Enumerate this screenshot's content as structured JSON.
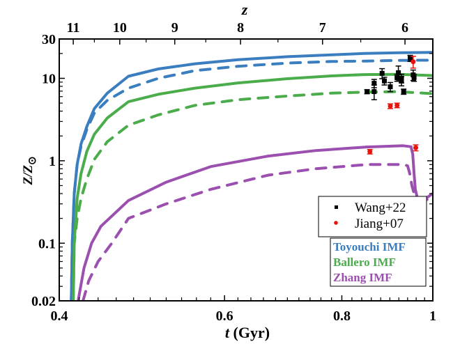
{
  "chart_data": {
    "type": "line",
    "title": "",
    "xlabel_italic": "t",
    "xlabel_rest": " (Gyr)",
    "ylabel_main": "Z/Z",
    "ylabel_sub": "⊙",
    "top_axis_label": "z",
    "xscale": "log",
    "yscale": "log",
    "xlim": [
      0.4,
      1.0
    ],
    "ylim": [
      0.02,
      30
    ],
    "x_ticks": [
      {
        "value": 0.4,
        "label": "0.4"
      },
      {
        "value": 0.6,
        "label": "0.6"
      },
      {
        "value": 0.8,
        "label": "0.8"
      },
      {
        "value": 1.0,
        "label": "1"
      }
    ],
    "y_ticks": [
      {
        "value": 0.02,
        "label": "0.02"
      },
      {
        "value": 0.1,
        "label": "0.1"
      },
      {
        "value": 1,
        "label": "1"
      },
      {
        "value": 10,
        "label": "10"
      },
      {
        "value": 30,
        "label": "30"
      }
    ],
    "top_ticks": [
      {
        "z": 11,
        "t": 0.414,
        "label": "11"
      },
      {
        "z": 10,
        "t": 0.464,
        "label": "10"
      },
      {
        "z": 9,
        "t": 0.531,
        "label": "9"
      },
      {
        "z": 8,
        "t": 0.624,
        "label": "8"
      },
      {
        "z": 7,
        "t": 0.763,
        "label": "7"
      },
      {
        "z": 6,
        "t": 0.934,
        "label": "6"
      }
    ],
    "top_minor_t": [
      0.436,
      0.495,
      0.573,
      0.684,
      0.838
    ],
    "grid": false,
    "legend_placement": "bottom-right",
    "series": [
      {
        "name": "Toyouchi IMF",
        "style": "solid",
        "color": "#3a7ebf",
        "points": [
          [
            0.412,
            0.02
          ],
          [
            0.413,
            0.1
          ],
          [
            0.415,
            0.4
          ],
          [
            0.418,
            0.9
          ],
          [
            0.422,
            1.6
          ],
          [
            0.428,
            2.6
          ],
          [
            0.436,
            4.3
          ],
          [
            0.45,
            6.6
          ],
          [
            0.474,
            10.6
          ],
          [
            0.51,
            13.0
          ],
          [
            0.558,
            15.0
          ],
          [
            0.62,
            16.8
          ],
          [
            0.7,
            18.3
          ],
          [
            0.78,
            19.3
          ],
          [
            0.845,
            20.0
          ],
          [
            0.92,
            20.4
          ],
          [
            1.0,
            20.6
          ]
        ]
      },
      {
        "name": "Toyouchi IMF (dashed)",
        "style": "dashed",
        "color": "#3a7ebf",
        "points": [
          [
            0.412,
            0.02
          ],
          [
            0.413,
            0.1
          ],
          [
            0.415,
            0.4
          ],
          [
            0.418,
            0.9
          ],
          [
            0.422,
            1.5
          ],
          [
            0.428,
            2.4
          ],
          [
            0.436,
            3.8
          ],
          [
            0.45,
            5.4
          ],
          [
            0.474,
            7.6
          ],
          [
            0.51,
            10.0
          ],
          [
            0.558,
            12.4
          ],
          [
            0.62,
            14.0
          ],
          [
            0.7,
            15.3
          ],
          [
            0.78,
            16.0
          ],
          [
            0.845,
            16.2
          ],
          [
            0.92,
            16.5
          ],
          [
            1.0,
            16.6
          ]
        ]
      },
      {
        "name": "Ballero IMF",
        "style": "solid",
        "color": "#4aac4a",
        "points": [
          [
            0.414,
            0.02
          ],
          [
            0.415,
            0.1
          ],
          [
            0.418,
            0.35
          ],
          [
            0.422,
            0.7
          ],
          [
            0.428,
            1.3
          ],
          [
            0.436,
            2.1
          ],
          [
            0.45,
            3.3
          ],
          [
            0.474,
            5.2
          ],
          [
            0.51,
            6.4
          ],
          [
            0.558,
            7.6
          ],
          [
            0.62,
            8.8
          ],
          [
            0.7,
            9.9
          ],
          [
            0.78,
            10.7
          ],
          [
            0.845,
            11.1
          ],
          [
            0.92,
            11.2
          ],
          [
            1.0,
            10.8
          ]
        ]
      },
      {
        "name": "Ballero IMF (dashed)",
        "style": "dashed",
        "color": "#4aac4a",
        "points": [
          [
            0.414,
            0.02
          ],
          [
            0.415,
            0.1
          ],
          [
            0.418,
            0.2
          ],
          [
            0.422,
            0.35
          ],
          [
            0.428,
            0.6
          ],
          [
            0.436,
            1.04
          ],
          [
            0.45,
            1.7
          ],
          [
            0.474,
            2.7
          ],
          [
            0.51,
            3.6
          ],
          [
            0.558,
            4.7
          ],
          [
            0.62,
            5.5
          ],
          [
            0.7,
            6.1
          ],
          [
            0.78,
            6.6
          ],
          [
            0.845,
            6.8
          ],
          [
            0.92,
            6.9
          ],
          [
            1.0,
            6.5
          ]
        ]
      },
      {
        "name": "Zhang IMF",
        "style": "solid",
        "color": "#9b4fae",
        "points": [
          [
            0.419,
            0.02
          ],
          [
            0.425,
            0.05
          ],
          [
            0.433,
            0.1
          ],
          [
            0.443,
            0.16
          ],
          [
            0.474,
            0.33
          ],
          [
            0.52,
            0.55
          ],
          [
            0.58,
            0.85
          ],
          [
            0.668,
            1.14
          ],
          [
            0.75,
            1.33
          ],
          [
            0.85,
            1.47
          ],
          [
            0.93,
            1.52
          ],
          [
            0.948,
            1.48
          ],
          [
            0.952,
            1.2
          ],
          [
            0.955,
            0.7
          ],
          [
            0.958,
            0.45
          ],
          [
            0.963,
            0.35
          ],
          [
            0.975,
            0.33
          ],
          [
            0.99,
            0.37
          ],
          [
            1.0,
            0.4
          ]
        ]
      },
      {
        "name": "Zhang IMF (dashed)",
        "style": "dashed",
        "color": "#9b4fae",
        "points": [
          [
            0.424,
            0.02
          ],
          [
            0.43,
            0.035
          ],
          [
            0.44,
            0.06
          ],
          [
            0.455,
            0.1
          ],
          [
            0.474,
            0.2
          ],
          [
            0.52,
            0.3
          ],
          [
            0.58,
            0.45
          ],
          [
            0.668,
            0.67
          ],
          [
            0.75,
            0.8
          ],
          [
            0.85,
            0.9
          ],
          [
            0.93,
            0.9
          ],
          [
            0.94,
            0.87
          ],
          [
            0.945,
            0.7
          ],
          [
            0.95,
            0.5
          ],
          [
            0.955,
            0.4
          ],
          [
            0.965,
            0.34
          ],
          [
            0.98,
            0.33
          ],
          [
            1.0,
            0.36
          ]
        ]
      }
    ],
    "scatter": [
      {
        "name": "Wang+22",
        "marker": "square",
        "color": "#000000",
        "points": [
          {
            "t": 0.851,
            "z": 6.9,
            "err": 0.4
          },
          {
            "t": 0.866,
            "z": 8.7,
            "err": 1.0
          },
          {
            "t": 0.866,
            "z": 6.9,
            "err": 1.4
          },
          {
            "t": 0.883,
            "z": 11.5,
            "err": 1.6
          },
          {
            "t": 0.888,
            "z": 9.3,
            "err": 1.0
          },
          {
            "t": 0.901,
            "z": 7.9,
            "err": 1.0
          },
          {
            "t": 0.916,
            "z": 10.2,
            "err": 1.0
          },
          {
            "t": 0.919,
            "z": 11.7,
            "err": 2.4
          },
          {
            "t": 0.926,
            "z": 10.0,
            "err": 1.2
          },
          {
            "t": 0.926,
            "z": 9.3,
            "err": 1.2
          },
          {
            "t": 0.931,
            "z": 6.9,
            "err": 0.5
          },
          {
            "t": 0.946,
            "z": 17.5,
            "err": 1.5
          },
          {
            "t": 0.953,
            "z": 11.0,
            "err": 1.6
          },
          {
            "t": 0.955,
            "z": 10.2,
            "err": 1.0
          }
        ]
      },
      {
        "name": "Jiang+07",
        "marker": "circle",
        "color": "#e8140c",
        "points": [
          {
            "t": 0.953,
            "z": 15.9,
            "err": 2.6
          },
          {
            "t": 0.901,
            "z": 4.6,
            "err": 0.3
          },
          {
            "t": 0.916,
            "z": 4.7,
            "err": 0.3
          },
          {
            "t": 0.857,
            "z": 1.29,
            "err": 0.08
          },
          {
            "t": 0.959,
            "z": 1.44,
            "err": 0.12
          }
        ]
      }
    ],
    "legend_points": [
      {
        "label": "Wang+22",
        "marker": "square",
        "color": "#000000"
      },
      {
        "label": "Jiang+07",
        "marker": "circle",
        "color": "#e8140c"
      }
    ],
    "legend_imf": [
      {
        "label": "Toyouchi IMF",
        "color": "#3a7ebf"
      },
      {
        "label": "Ballero IMF",
        "color": "#4aac4a"
      },
      {
        "label": "Zhang IMF",
        "color": "#9b4fae"
      }
    ]
  }
}
